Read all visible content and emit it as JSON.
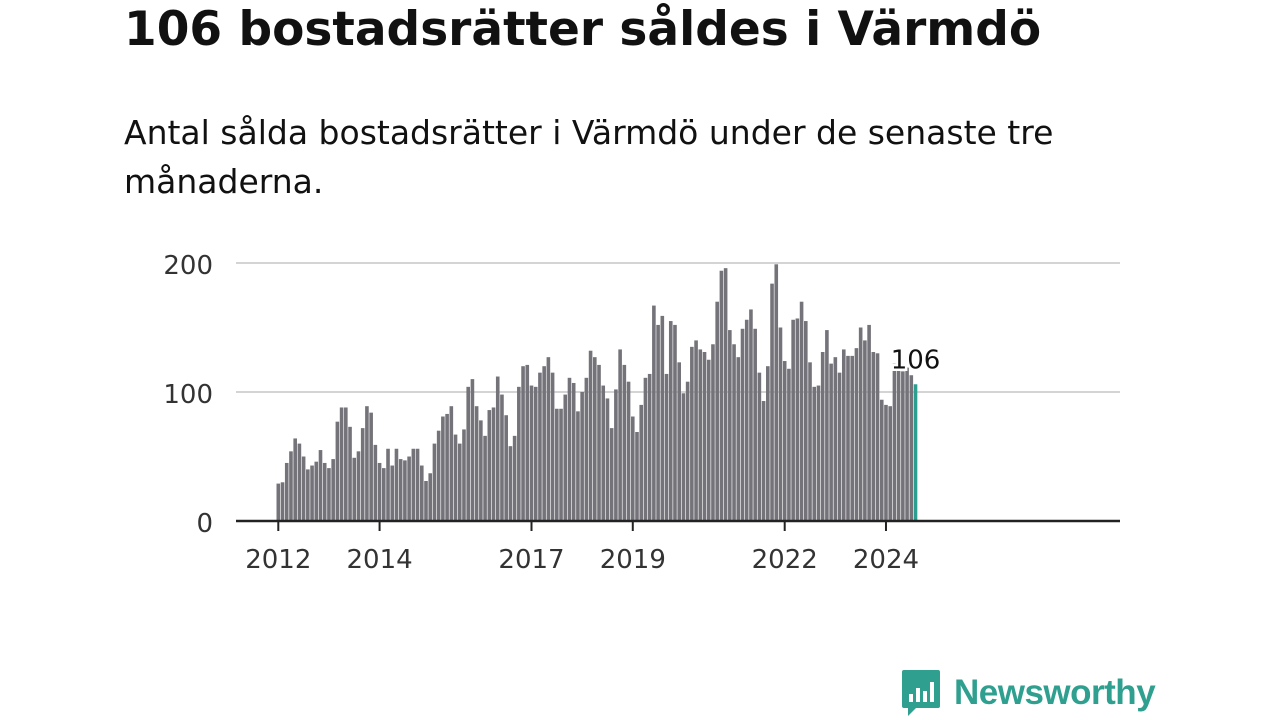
{
  "title": "106 bostadsrätter såldes i Värmdö",
  "subtitle": "Antal sålda bostadsrätter i Värmdö under de senaste tre månaderna.",
  "brand": {
    "name": "Newsworthy",
    "logo_icon": "newsworthy-chart-icon"
  },
  "colors": {
    "bar": "#747379",
    "highlight": "#2b9e90",
    "grid": "#d4d4d4",
    "axis": "#222222",
    "brand": "#2fa08f"
  },
  "chart_data": {
    "type": "bar",
    "title": "106 bostadsrätter såldes i Värmdö",
    "xlabel": "",
    "ylabel": "",
    "ylim": [
      0,
      200
    ],
    "y_ticks": [
      0,
      100,
      200
    ],
    "y_tick_labels": [
      "0",
      "100",
      "200"
    ],
    "x_ticks": [
      {
        "label": "2012",
        "index": 0
      },
      {
        "label": "2014",
        "index": 24
      },
      {
        "label": "2017",
        "index": 60
      },
      {
        "label": "2019",
        "index": 84
      },
      {
        "label": "2022",
        "index": 120
      },
      {
        "label": "2024",
        "index": 144
      }
    ],
    "frequency": "monthly",
    "start": "2012-01",
    "values": [
      29,
      30,
      45,
      54,
      64,
      60,
      50,
      40,
      43,
      46,
      55,
      45,
      41,
      48,
      77,
      88,
      88,
      73,
      49,
      54,
      72,
      89,
      84,
      59,
      45,
      41,
      56,
      43,
      56,
      48,
      47,
      50,
      56,
      56,
      43,
      31,
      37,
      60,
      70,
      81,
      83,
      89,
      67,
      60,
      71,
      104,
      110,
      89,
      78,
      66,
      86,
      88,
      112,
      98,
      82,
      58,
      66,
      104,
      120,
      121,
      105,
      104,
      115,
      120,
      127,
      115,
      87,
      87,
      98,
      111,
      107,
      85,
      100,
      111,
      132,
      127,
      121,
      105,
      95,
      72,
      102,
      133,
      121,
      108,
      81,
      69,
      90,
      111,
      114,
      167,
      152,
      159,
      114,
      155,
      152,
      123,
      99,
      108,
      135,
      140,
      133,
      131,
      125,
      137,
      170,
      194,
      196,
      148,
      137,
      127,
      149,
      156,
      164,
      149,
      115,
      93,
      120,
      184,
      199,
      150,
      124,
      118,
      156,
      157,
      170,
      155,
      123,
      104,
      105,
      131,
      148,
      122,
      127,
      115,
      133,
      128,
      128,
      134,
      150,
      140,
      152,
      131,
      130,
      94,
      90,
      89,
      122,
      118,
      116,
      119,
      113,
      106
    ],
    "highlight_last": true,
    "last_label": "106"
  }
}
